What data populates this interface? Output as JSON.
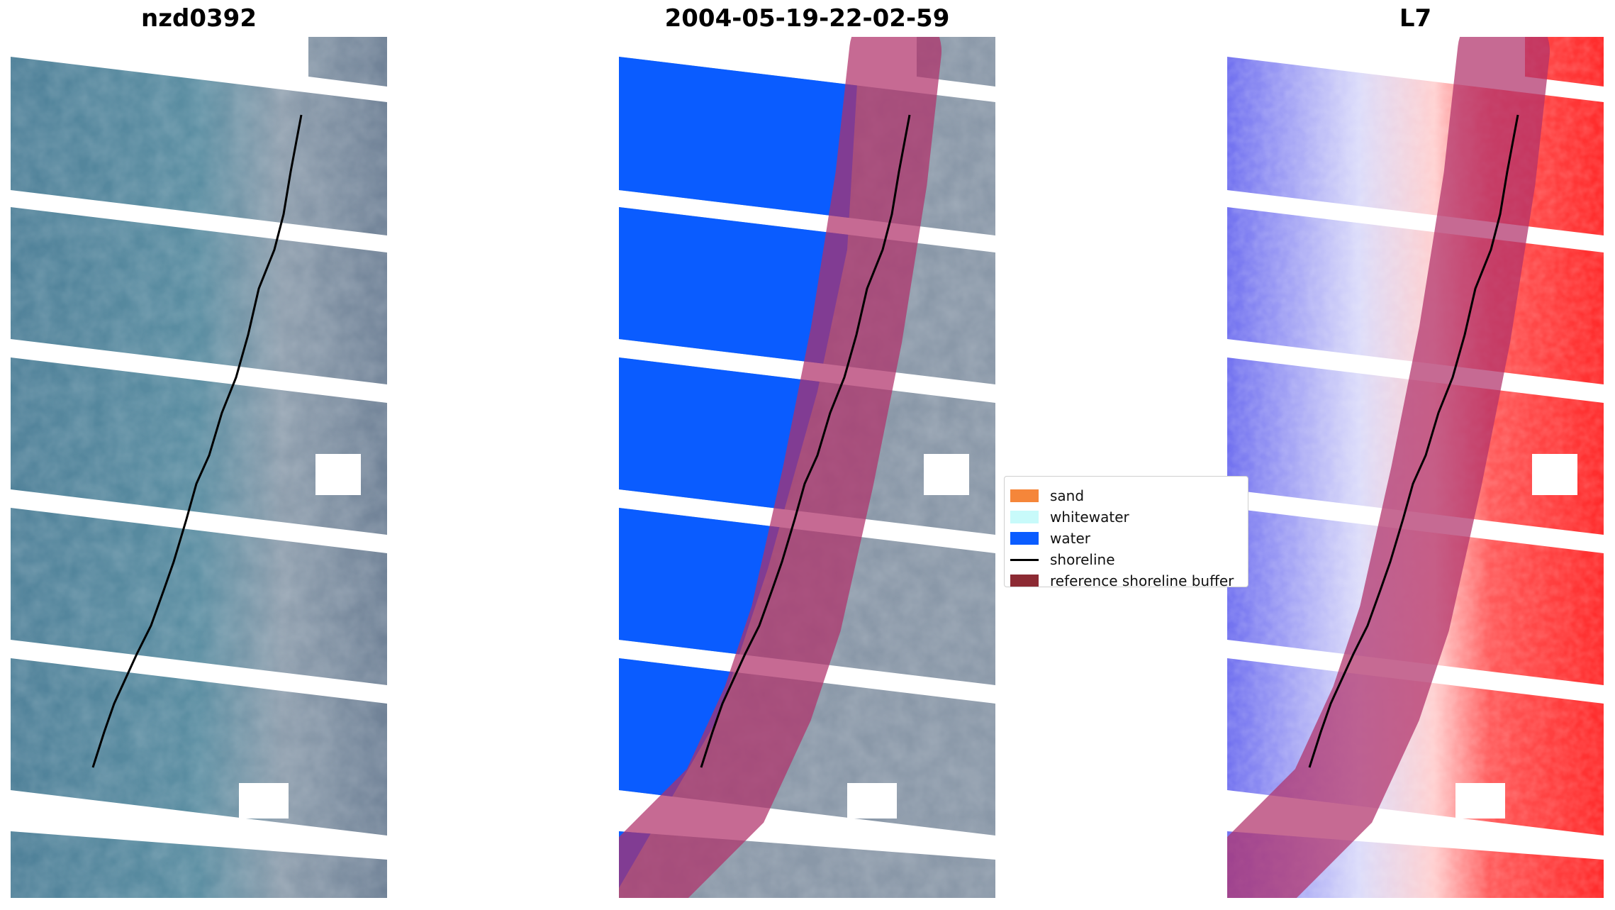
{
  "titles": {
    "left": "nzd0392",
    "middle": "2004-05-19-22-02-59",
    "right": "L7"
  },
  "legend": {
    "items": [
      {
        "label": "sand",
        "color": "#f5863a",
        "kind": "patch"
      },
      {
        "label": "whitewater",
        "color": "#c8fafa",
        "kind": "patch"
      },
      {
        "label": "water",
        "color": "#0a5cff",
        "kind": "patch"
      },
      {
        "label": "shoreline",
        "color": "#000000",
        "kind": "line"
      },
      {
        "label": "reference shoreline buffer",
        "color": "#8c2a33",
        "kind": "patch"
      }
    ]
  },
  "colors": {
    "water_class": "#0a5cff",
    "buffer_overlay": "#b0306a",
    "ocean_rgb": "#5a8aa0",
    "land_rgb": "#8a98a8",
    "index_low": "#3333ee",
    "index_high": "#ff1a1a"
  }
}
